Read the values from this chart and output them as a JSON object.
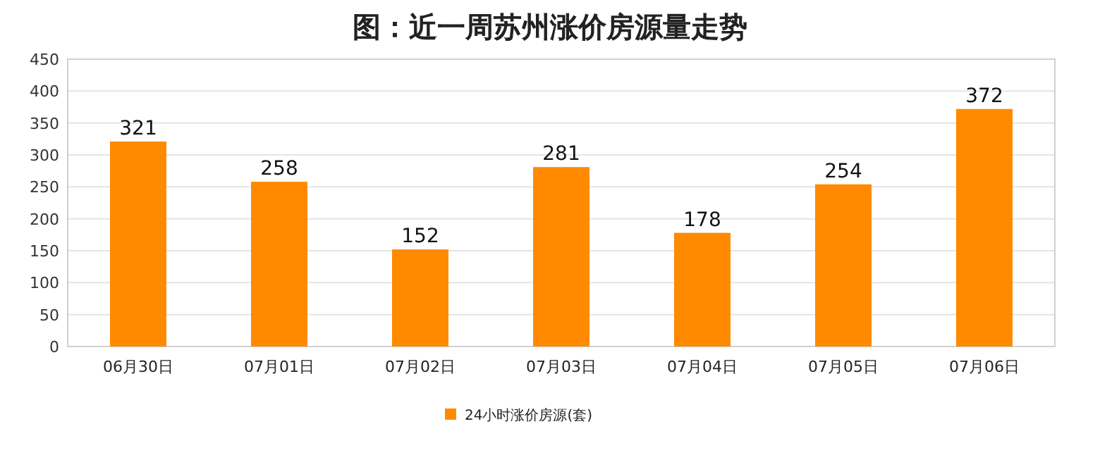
{
  "chart_data": {
    "type": "bar",
    "title": "图：近一周苏州涨价房源量走势",
    "categories": [
      "06月30日",
      "07月01日",
      "07月02日",
      "07月03日",
      "07月04日",
      "07月05日",
      "07月06日"
    ],
    "series": [
      {
        "name": "24小时涨价房源(套)",
        "color": "#ff8a00",
        "values": [
          321,
          258,
          152,
          281,
          178,
          254,
          372
        ]
      }
    ],
    "ylim": [
      0,
      450
    ],
    "yticks": [
      0,
      50,
      100,
      150,
      200,
      250,
      300,
      350,
      400,
      450
    ],
    "grid": "y",
    "legend": "bottom",
    "data_labels": true
  }
}
